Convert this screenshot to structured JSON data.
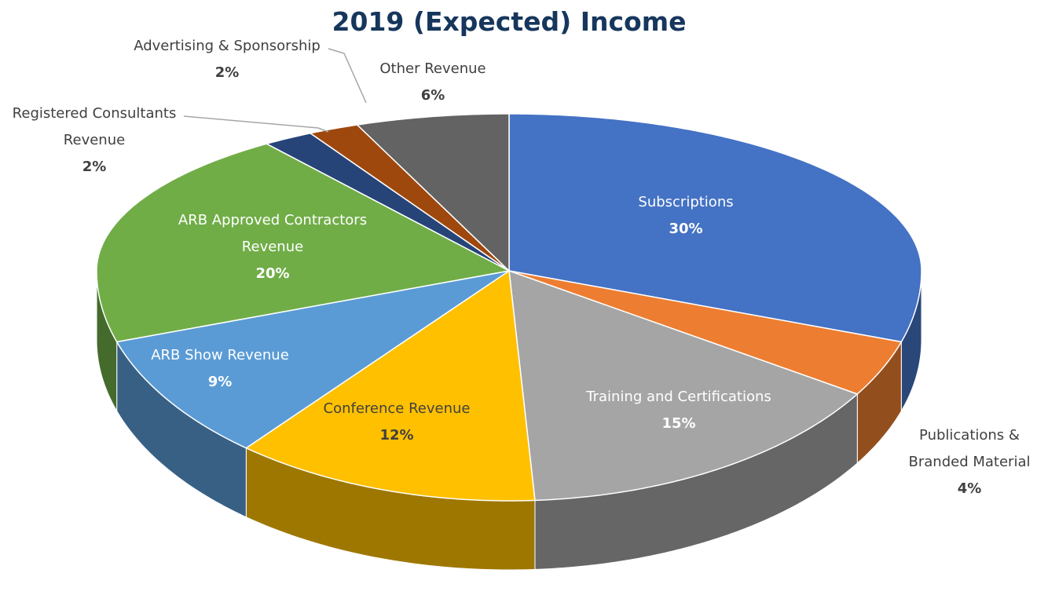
{
  "chart_data": {
    "type": "pie3d",
    "title": "2019 (Expected) Income",
    "categories": [
      "Subscriptions",
      "Publications & Branded Material",
      "Training and Certifications",
      "Conference Revenue",
      "ARB Show Revenue",
      "ARB Approved Contractors Revenue",
      "Registered Consultants Revenue",
      "Advertising & Sponsorship",
      "Other Revenue"
    ],
    "values": [
      30,
      4,
      15,
      12,
      9,
      20,
      2,
      2,
      6
    ],
    "value_labels": [
      "30%",
      "4%",
      "15%",
      "12%",
      "9%",
      "20%",
      "2%",
      "2%",
      "6%"
    ],
    "colors": [
      "#4472c4",
      "#ed7d31",
      "#a5a5a5",
      "#ffc000",
      "#5b9bd5",
      "#70ad47",
      "#264478",
      "#9e480e",
      "#636363"
    ]
  }
}
